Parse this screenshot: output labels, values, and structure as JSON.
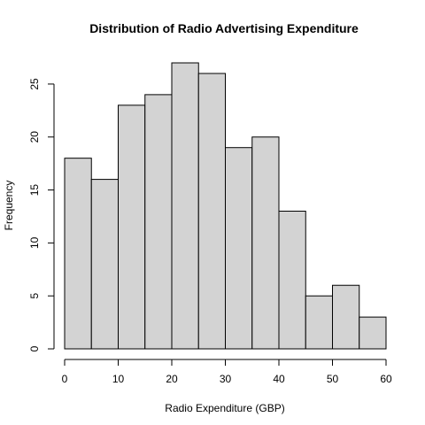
{
  "chart_data": {
    "type": "bar",
    "title": "Distribution of Radio Advertising Expenditure",
    "xlabel": "Radio Expenditure (GBP)",
    "ylabel": "Frequency",
    "bins": [
      [
        0,
        5
      ],
      [
        5,
        10
      ],
      [
        10,
        15
      ],
      [
        15,
        20
      ],
      [
        20,
        25
      ],
      [
        25,
        30
      ],
      [
        30,
        35
      ],
      [
        35,
        40
      ],
      [
        40,
        45
      ],
      [
        45,
        50
      ],
      [
        50,
        55
      ],
      [
        55,
        60
      ]
    ],
    "values": [
      18,
      16,
      23,
      24,
      27,
      26,
      19,
      20,
      13,
      5,
      6,
      3
    ],
    "xlim": [
      0,
      60
    ],
    "ylim": [
      0,
      27
    ],
    "x_ticks": [
      0,
      10,
      20,
      30,
      40,
      50,
      60
    ],
    "y_ticks": [
      0,
      5,
      10,
      15,
      20,
      25
    ],
    "bar_color": "#d3d3d3",
    "grid": false
  }
}
